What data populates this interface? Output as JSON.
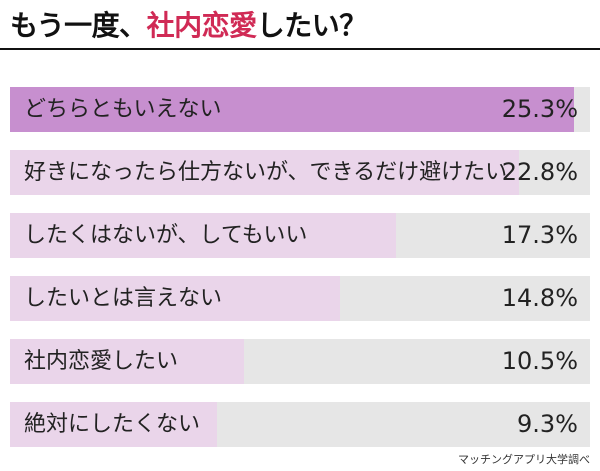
{
  "title": {
    "prefix": "もう一度、",
    "highlight": "社内恋愛",
    "suffix": "したい？"
  },
  "chart_data": {
    "type": "bar",
    "orientation": "horizontal",
    "categories": [
      "どちらともいえない",
      "好きになったら仕方ないが、できるだけ避けたい",
      "したくはないが、してもいい",
      "したいとは言えない",
      "社内恋愛したい",
      "絶対にしたくない"
    ],
    "values": [
      25.3,
      22.8,
      17.3,
      14.8,
      10.5,
      9.3
    ],
    "value_labels": [
      "25.3%",
      "22.8%",
      "17.3%",
      "14.8%",
      "10.5%",
      "9.3%"
    ],
    "xlim": [
      0,
      26
    ],
    "colors": {
      "highlight_bar": "#c78fcf",
      "bar": "#ead5ea",
      "track": "#e6e6e6",
      "title_accent": "#d02a55"
    }
  },
  "source": "マッチングアプリ大学調べ"
}
